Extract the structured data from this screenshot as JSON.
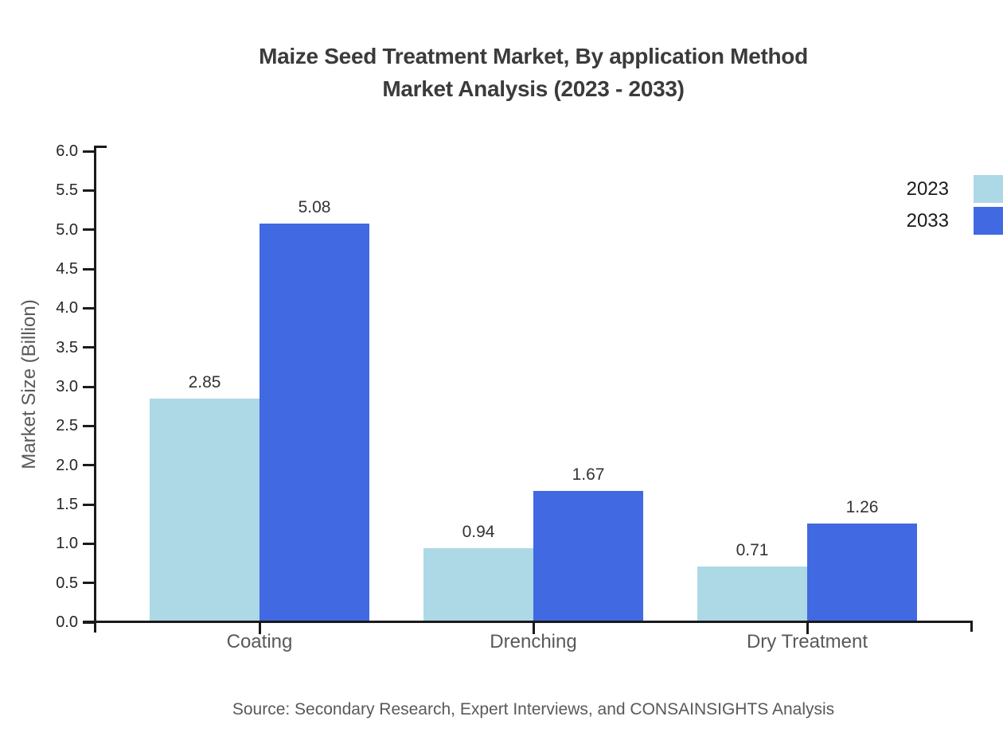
{
  "title": {
    "line1": "Maize Seed Treatment Market, By application Method",
    "line2": "Market Analysis (2023 - 2033)"
  },
  "axis": {
    "y_label": "Market Size (Billion)"
  },
  "legend": {
    "items": [
      {
        "label": "2023",
        "color": "#ADD8E6"
      },
      {
        "label": "2033",
        "color": "#4169E1"
      }
    ]
  },
  "source_note": "Source: Secondary Research, Expert Interviews, and CONSAINSIGHTS Analysis",
  "chart_data": {
    "type": "bar",
    "title": "Maize Seed Treatment Market, By application Method Market Analysis (2023 - 2033)",
    "categories": [
      "Coating",
      "Drenching",
      "Dry Treatment"
    ],
    "series": [
      {
        "name": "2023",
        "color": "#ADD8E6",
        "values": [
          2.85,
          0.94,
          0.71
        ]
      },
      {
        "name": "2033",
        "color": "#4169E1",
        "values": [
          5.08,
          1.67,
          1.26
        ]
      }
    ],
    "value_labels": [
      [
        "2.85",
        "0.94",
        "0.71"
      ],
      [
        "5.08",
        "1.67",
        "1.26"
      ]
    ],
    "xlabel": "",
    "ylabel": "Market Size (Billion)",
    "ylim": [
      0,
      6
    ],
    "ytick_step": 0.5,
    "ytick_format_decimals": 1,
    "grid": false,
    "legend_position": "upper-right",
    "bar_orientation": "vertical"
  },
  "colors": {
    "series_2023": "#ADD8E6",
    "series_2033": "#4169E1",
    "axis_line": "#1A1A1A",
    "tick_label": "#262626",
    "title_text": "#3B3B3B",
    "muted_text": "#595959",
    "legend_text": "#1A1A1A",
    "background": "#FFFFFF"
  }
}
